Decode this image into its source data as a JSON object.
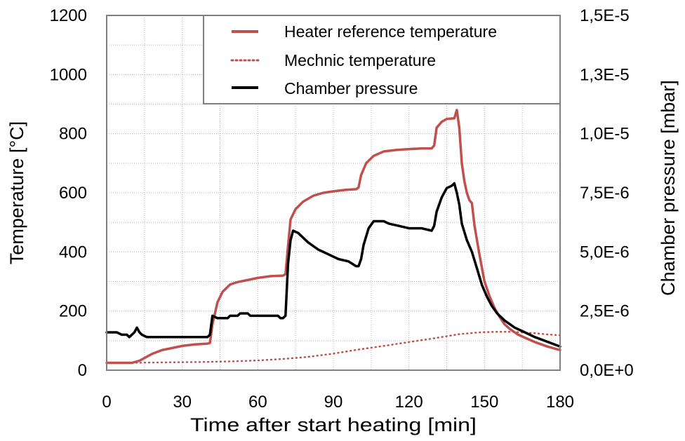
{
  "chart_data": {
    "type": "line",
    "x": {
      "label": "Time after start heating [min]",
      "range": [
        0,
        180
      ],
      "ticks": [
        0,
        30,
        60,
        90,
        120,
        150,
        180
      ]
    },
    "y_left": {
      "label": "Temperature [°C]",
      "range": [
        0,
        1200
      ],
      "ticks": [
        0,
        200,
        400,
        600,
        800,
        1000,
        1200
      ],
      "tick_labels": [
        "0",
        "200",
        "400",
        "600",
        "800",
        "1000",
        "1200"
      ]
    },
    "y_right": {
      "label": "Chamber pressure [mbar]",
      "range": [
        0,
        1.5e-05
      ],
      "ticks": [
        0,
        2.5e-06,
        5e-06,
        7.5e-06,
        1e-05,
        1.25e-05,
        1.5e-05
      ],
      "tick_labels": [
        "0,0E+0",
        "2,5E-6",
        "5,0E-6",
        "7,5E-6",
        "1,0E-5",
        "1,3E-5",
        "1,5E-5"
      ]
    },
    "grid": true,
    "legend_position": "top-right",
    "series": [
      {
        "name": "Heater reference temperature",
        "axis": "left",
        "style": "solid",
        "color": "#c0504d",
        "points": [
          [
            0,
            25
          ],
          [
            5,
            25
          ],
          [
            10,
            25
          ],
          [
            13,
            32
          ],
          [
            18,
            55
          ],
          [
            22,
            68
          ],
          [
            26,
            75
          ],
          [
            30,
            82
          ],
          [
            35,
            87
          ],
          [
            40,
            90
          ],
          [
            41,
            92
          ],
          [
            42,
            155
          ],
          [
            44,
            230
          ],
          [
            46,
            265
          ],
          [
            49,
            290
          ],
          [
            52,
            298
          ],
          [
            56,
            305
          ],
          [
            60,
            312
          ],
          [
            65,
            318
          ],
          [
            70,
            320
          ],
          [
            71,
            325
          ],
          [
            72,
            420
          ],
          [
            73,
            510
          ],
          [
            75,
            545
          ],
          [
            78,
            570
          ],
          [
            82,
            590
          ],
          [
            86,
            600
          ],
          [
            90,
            605
          ],
          [
            95,
            610
          ],
          [
            99,
            612
          ],
          [
            100,
            618
          ],
          [
            101,
            660
          ],
          [
            103,
            700
          ],
          [
            106,
            725
          ],
          [
            110,
            740
          ],
          [
            115,
            745
          ],
          [
            120,
            748
          ],
          [
            125,
            750
          ],
          [
            129,
            750
          ],
          [
            130,
            760
          ],
          [
            131,
            820
          ],
          [
            133,
            840
          ],
          [
            135,
            850
          ],
          [
            138,
            852
          ],
          [
            139,
            880
          ],
          [
            140,
            820
          ],
          [
            141,
            700
          ],
          [
            142,
            640
          ],
          [
            143,
            600
          ],
          [
            144,
            575
          ],
          [
            145,
            565
          ],
          [
            146,
            490
          ],
          [
            148,
            390
          ],
          [
            150,
            300
          ],
          [
            152,
            250
          ],
          [
            154,
            210
          ],
          [
            156,
            180
          ],
          [
            158,
            155
          ],
          [
            160,
            140
          ],
          [
            163,
            122
          ],
          [
            166,
            110
          ],
          [
            170,
            95
          ],
          [
            175,
            80
          ],
          [
            180,
            68
          ]
        ]
      },
      {
        "name": "Mechnic temperature",
        "axis": "left",
        "style": "dotted",
        "color": "#c0504d",
        "points": [
          [
            0,
            25
          ],
          [
            10,
            25
          ],
          [
            20,
            26
          ],
          [
            30,
            27
          ],
          [
            40,
            28
          ],
          [
            50,
            30
          ],
          [
            60,
            33
          ],
          [
            70,
            38
          ],
          [
            80,
            45
          ],
          [
            90,
            56
          ],
          [
            100,
            70
          ],
          [
            110,
            82
          ],
          [
            120,
            95
          ],
          [
            130,
            108
          ],
          [
            140,
            122
          ],
          [
            148,
            128
          ],
          [
            155,
            130
          ],
          [
            160,
            130
          ],
          [
            165,
            128
          ],
          [
            170,
            125
          ],
          [
            175,
            121
          ],
          [
            180,
            118
          ]
        ]
      },
      {
        "name": "Chamber pressure",
        "axis": "right",
        "style": "solid",
        "color": "#000000",
        "points": [
          [
            0,
            1.6e-06
          ],
          [
            4,
            1.6e-06
          ],
          [
            6,
            1.5e-06
          ],
          [
            8,
            1.5e-06
          ],
          [
            9,
            1.4e-06
          ],
          [
            10,
            1.5e-06
          ],
          [
            11,
            1.6e-06
          ],
          [
            12,
            1.8e-06
          ],
          [
            13,
            1.6e-06
          ],
          [
            14,
            1.5e-06
          ],
          [
            16,
            1.4e-06
          ],
          [
            20,
            1.4e-06
          ],
          [
            30,
            1.4e-06
          ],
          [
            40,
            1.4e-06
          ],
          [
            41,
            1.5e-06
          ],
          [
            42,
            2.3e-06
          ],
          [
            44,
            2.2e-06
          ],
          [
            48,
            2.2e-06
          ],
          [
            49,
            2.3e-06
          ],
          [
            52,
            2.3e-06
          ],
          [
            53,
            2.4e-06
          ],
          [
            56,
            2.4e-06
          ],
          [
            57,
            2.3e-06
          ],
          [
            64,
            2.3e-06
          ],
          [
            68,
            2.3e-06
          ],
          [
            69,
            2.2e-06
          ],
          [
            70,
            2.2e-06
          ],
          [
            71,
            2.3e-06
          ],
          [
            72,
            4.5e-06
          ],
          [
            73,
            5.5e-06
          ],
          [
            74,
            5.9e-06
          ],
          [
            76,
            5.8e-06
          ],
          [
            80,
            5.4e-06
          ],
          [
            84,
            5.1e-06
          ],
          [
            88,
            4.9e-06
          ],
          [
            92,
            4.7e-06
          ],
          [
            96,
            4.6e-06
          ],
          [
            99,
            4.4e-06
          ],
          [
            100,
            4.4e-06
          ],
          [
            101,
            4.7e-06
          ],
          [
            102,
            5.3e-06
          ],
          [
            104,
            6e-06
          ],
          [
            106,
            6.3e-06
          ],
          [
            108,
            6.3e-06
          ],
          [
            110,
            6.3e-06
          ],
          [
            112,
            6.2e-06
          ],
          [
            116,
            6.1e-06
          ],
          [
            120,
            6e-06
          ],
          [
            125,
            6e-06
          ],
          [
            129,
            5.9e-06
          ],
          [
            130,
            6.1e-06
          ],
          [
            131,
            6.7e-06
          ],
          [
            133,
            7.3e-06
          ],
          [
            135,
            7.7e-06
          ],
          [
            137,
            7.8e-06
          ],
          [
            138,
            7.9e-06
          ],
          [
            139,
            7.5e-06
          ],
          [
            140,
            7e-06
          ],
          [
            141,
            6.2e-06
          ],
          [
            143,
            5.5e-06
          ],
          [
            145,
            5e-06
          ],
          [
            147,
            4.3e-06
          ],
          [
            149,
            3.6e-06
          ],
          [
            151,
            3.1e-06
          ],
          [
            153,
            2.7e-06
          ],
          [
            155,
            2.4e-06
          ],
          [
            158,
            2.1e-06
          ],
          [
            162,
            1.8e-06
          ],
          [
            166,
            1.6e-06
          ],
          [
            170,
            1.4e-06
          ],
          [
            175,
            1.2e-06
          ],
          [
            180,
            1e-06
          ]
        ]
      }
    ]
  }
}
